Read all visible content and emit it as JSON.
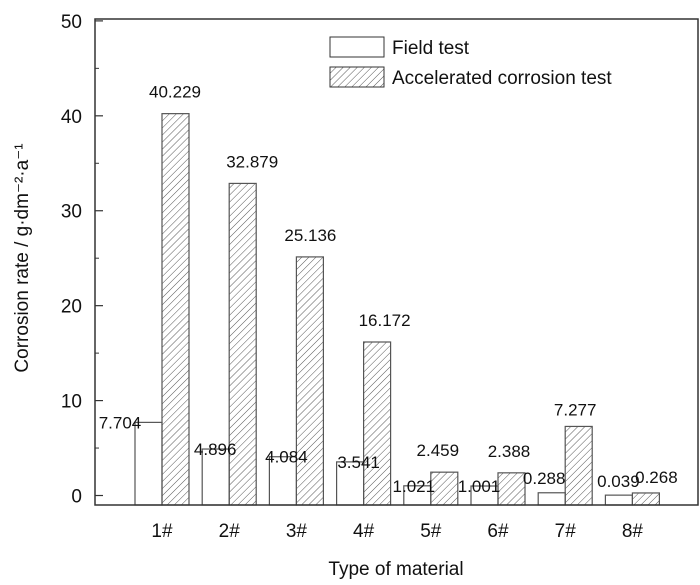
{
  "chart_data": {
    "type": "bar",
    "title": "",
    "xlabel": "Type of material",
    "ylabel": "Corrosion rate / g·dm⁻²·a⁻¹",
    "ylim": [
      -1,
      50.2
    ],
    "yticks": [
      0,
      10,
      20,
      30,
      40,
      50
    ],
    "grid": false,
    "legend_placement": "top-right",
    "categories": [
      "1#",
      "2#",
      "3#",
      "4#",
      "5#",
      "6#",
      "7#",
      "8#"
    ],
    "series": [
      {
        "name": "Field test",
        "pattern": "none",
        "values": [
          7.704,
          4.896,
          4.084,
          3.541,
          1.021,
          1.001,
          0.288,
          0.039
        ],
        "labels": [
          "7.704",
          "4.896",
          "4.084",
          "3.541",
          "1.021",
          "1.001",
          "0.288",
          "0.039"
        ]
      },
      {
        "name": "Accelerated corrosion test",
        "pattern": "diagonal-hatch",
        "values": [
          40.229,
          32.879,
          25.136,
          16.172,
          2.459,
          2.388,
          7.277,
          0.268
        ],
        "labels": [
          "40.229",
          "32.879",
          "25.136",
          "16.172",
          "2.459",
          "2.388",
          "7.277",
          "0.268"
        ]
      }
    ],
    "colors": {
      "axis": "#333333",
      "bar_edge": "#555555",
      "hatch": "#444444",
      "fill": "#ffffff"
    }
  }
}
